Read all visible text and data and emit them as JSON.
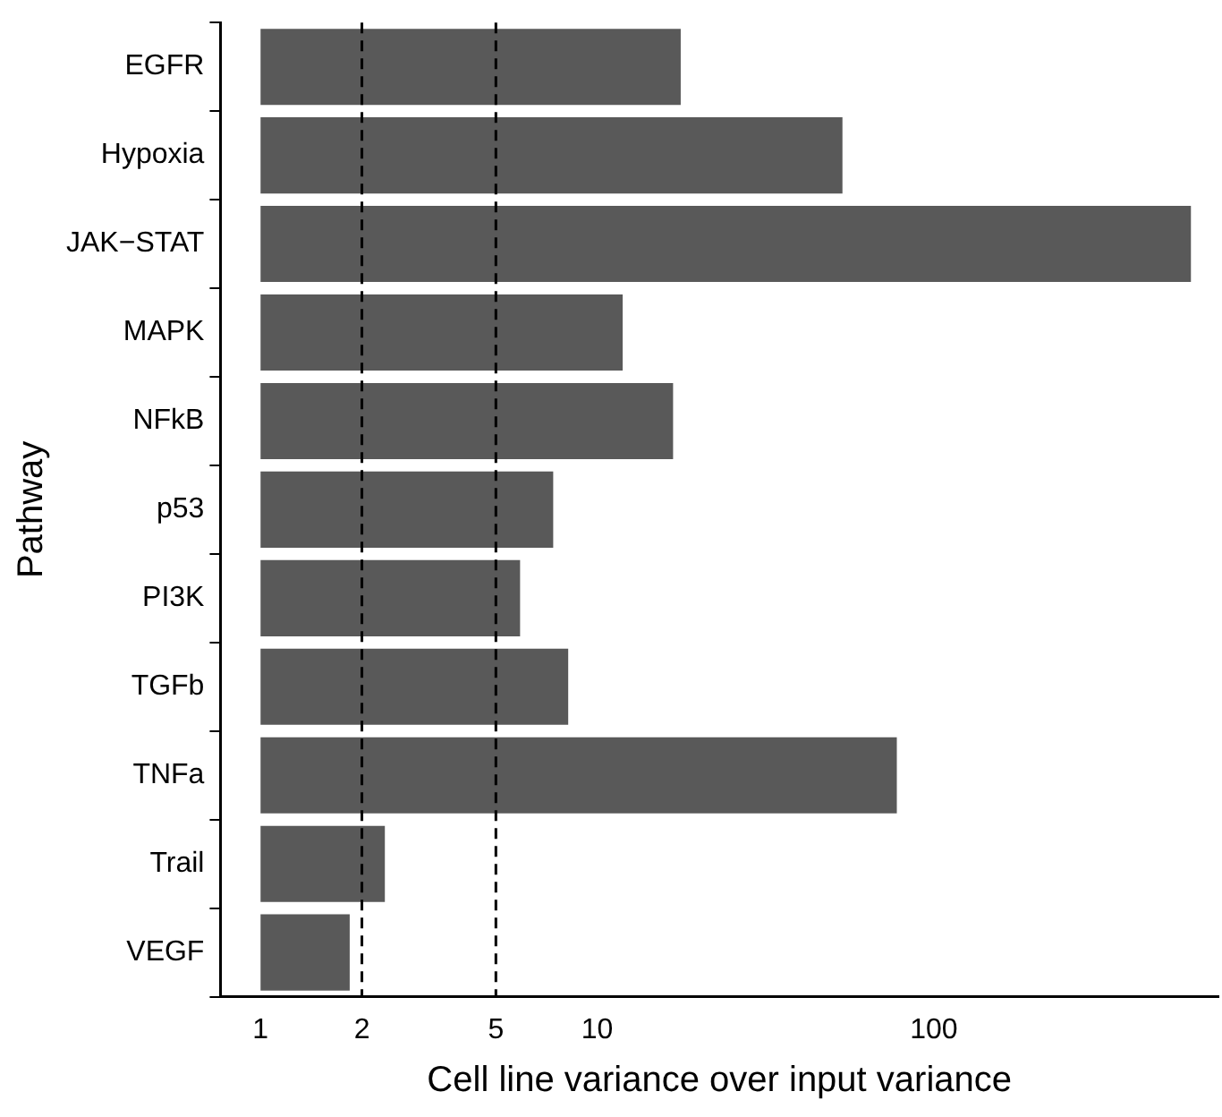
{
  "chart_data": {
    "type": "bar",
    "orientation": "horizontal",
    "log": "x",
    "xlabel": "Cell line variance over input variance",
    "ylabel": "Pathway",
    "categories": [
      "EGFR",
      "Hypoxia",
      "JAK−STAT",
      "MAPK",
      "NFkB",
      "p53",
      "PI3K",
      "TGFb",
      "TNFa",
      "Trail",
      "VEGF"
    ],
    "values": [
      16.7,
      52.5,
      579,
      10.9,
      15.8,
      6.4,
      4.9,
      7.2,
      76.6,
      1.34,
      0.84
    ],
    "base": [
      1,
      1,
      1,
      1,
      1,
      1,
      1,
      1,
      1,
      1,
      1
    ],
    "color": "#595959",
    "xlim": [
      0.76,
      700
    ],
    "xticks": [
      1,
      2,
      5,
      10,
      100
    ],
    "ref_lines": [
      {
        "axis": "x",
        "value": 2,
        "line_style": "dashed",
        "color": "#000000"
      },
      {
        "axis": "x",
        "value": 5,
        "line_style": "dashed",
        "color": "#000000"
      }
    ],
    "grid": false,
    "legend": false
  }
}
